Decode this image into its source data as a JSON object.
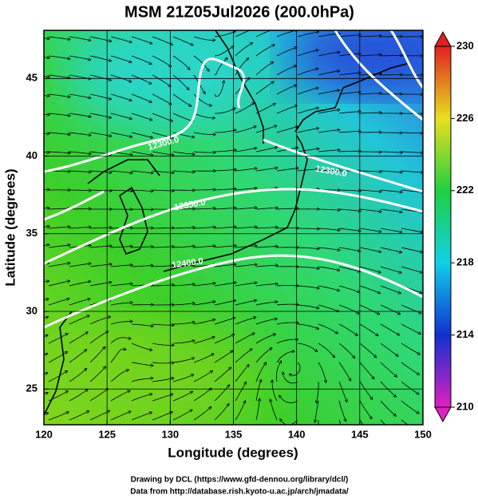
{
  "header": {
    "title": "MSM 21Z05Jul2026 (200.0hPa)"
  },
  "chart_data": {
    "type": "map",
    "xlabel": "Longitude (degrees)",
    "ylabel": "Latitude  (degrees)",
    "xlim": [
      120,
      150
    ],
    "ylim": [
      22.7,
      48.1
    ],
    "xticks": [
      120,
      125,
      130,
      135,
      140,
      145,
      150
    ],
    "yticks": [
      25,
      30,
      35,
      40,
      45
    ],
    "grid": true,
    "colorbar": {
      "lim": [
        210,
        230
      ],
      "ticks": [
        210,
        214,
        218,
        222,
        226,
        230
      ]
    },
    "contour_labels": [
      "12300.0",
      "12300.0",
      "12350.0",
      "12400.0"
    ]
  },
  "footer": {
    "lines": [
      "Drawing by DCL (https://www.gfd-dennou.org/library/dcl/)",
      "Data from http://database.rish.kyoto-u.ac.jp/arch/jmadata/"
    ]
  }
}
